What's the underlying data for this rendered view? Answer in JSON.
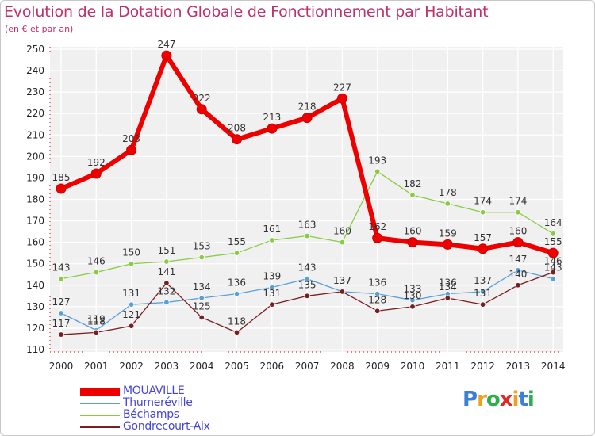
{
  "title": "Evolution de la Dotation Globale de Fonctionnement par Habitant",
  "subtitle": "(en € et par an)",
  "logo_text": "Proxiti",
  "chart_data": {
    "type": "line",
    "title": "Evolution de la Dotation Globale de Fonctionnement par Habitant",
    "subtitle": "(en € et par an)",
    "xlabel": "",
    "ylabel": "",
    "ylim": [
      110,
      250
    ],
    "yticks": [
      110,
      120,
      130,
      140,
      150,
      160,
      170,
      180,
      190,
      200,
      210,
      220,
      230,
      240,
      250
    ],
    "grid": true,
    "legend_position": "bottom-left",
    "categories": [
      "2000",
      "2001",
      "2002",
      "2003",
      "2004",
      "2005",
      "2006",
      "2007",
      "2008",
      "2009",
      "2010",
      "2011",
      "2012",
      "2013",
      "2014"
    ],
    "series": [
      {
        "name": "MOUAVILLE",
        "color": "#ee0000",
        "values": [
          185,
          192,
          203,
          247,
          222,
          208,
          213,
          218,
          227,
          162,
          160,
          159,
          157,
          160,
          155
        ]
      },
      {
        "name": "Thumeréville",
        "color": "#5aa0d8",
        "values": [
          127,
          119,
          131,
          132,
          134,
          136,
          139,
          143,
          137,
          136,
          133,
          136,
          137,
          147,
          143
        ]
      },
      {
        "name": "Béchamps",
        "color": "#88cc44",
        "values": [
          143,
          146,
          150,
          151,
          153,
          155,
          161,
          163,
          160,
          193,
          182,
          178,
          174,
          174,
          164
        ]
      },
      {
        "name": "Gondrecourt-Aix",
        "color": "#7a1e22",
        "values": [
          117,
          118,
          121,
          141,
          125,
          118,
          131,
          135,
          137,
          128,
          130,
          134,
          131,
          140,
          146
        ]
      }
    ]
  }
}
